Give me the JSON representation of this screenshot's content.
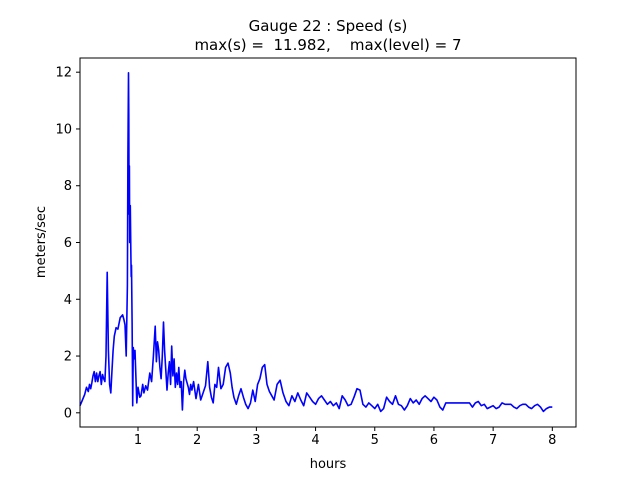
{
  "chart_data": {
    "type": "line",
    "title": "Gauge 22 : Speed (s)",
    "subtitle": "max(s) =  11.982,    max(level) = 7",
    "xlabel": "hours",
    "ylabel": "meters/sec",
    "xlim": [
      0.02,
      8.4
    ],
    "ylim": [
      -0.5,
      12.5
    ],
    "xticks": [
      1,
      2,
      3,
      4,
      5,
      6,
      7,
      8
    ],
    "yticks": [
      0,
      2,
      4,
      6,
      8,
      10,
      12
    ],
    "grid": false,
    "line_color": "#0000ff",
    "series": [
      {
        "x": [
          0.02,
          0.05,
          0.1,
          0.13,
          0.16,
          0.18,
          0.2,
          0.22,
          0.24,
          0.26,
          0.28,
          0.3,
          0.32,
          0.34,
          0.36,
          0.38,
          0.4,
          0.42,
          0.44,
          0.46,
          0.48,
          0.5,
          0.52,
          0.54,
          0.56,
          0.58,
          0.6,
          0.63,
          0.66,
          0.7,
          0.74,
          0.76,
          0.78,
          0.8,
          0.82,
          0.83,
          0.84,
          0.845,
          0.85,
          0.855,
          0.86,
          0.87,
          0.88,
          0.885,
          0.89,
          0.9,
          0.91,
          0.92,
          0.93,
          0.95,
          0.98,
          1.0,
          1.03,
          1.05,
          1.08,
          1.1,
          1.13,
          1.16,
          1.2,
          1.23,
          1.26,
          1.29,
          1.31,
          1.33,
          1.35,
          1.37,
          1.39,
          1.41,
          1.43,
          1.45,
          1.47,
          1.49,
          1.51,
          1.53,
          1.55,
          1.57,
          1.59,
          1.61,
          1.63,
          1.65,
          1.67,
          1.69,
          1.71,
          1.73,
          1.75,
          1.77,
          1.79,
          1.81,
          1.83,
          1.85,
          1.87,
          1.89,
          1.91,
          1.94,
          1.98,
          2.02,
          2.06,
          2.1,
          2.14,
          2.18,
          2.21,
          2.24,
          2.27,
          2.3,
          2.33,
          2.36,
          2.4,
          2.44,
          2.48,
          2.52,
          2.56,
          2.59,
          2.62,
          2.66,
          2.7,
          2.74,
          2.78,
          2.82,
          2.86,
          2.9,
          2.94,
          2.98,
          3.02,
          3.06,
          3.1,
          3.14,
          3.18,
          3.22,
          3.26,
          3.3,
          3.35,
          3.4,
          3.45,
          3.5,
          3.55,
          3.6,
          3.65,
          3.7,
          3.75,
          3.8,
          3.85,
          3.9,
          3.95,
          4.0,
          4.05,
          4.1,
          4.15,
          4.2,
          4.25,
          4.3,
          4.35,
          4.4,
          4.45,
          4.5,
          4.55,
          4.6,
          4.65,
          4.7,
          4.75,
          4.8,
          4.85,
          4.9,
          4.95,
          5.0,
          5.05,
          5.1,
          5.15,
          5.2,
          5.25,
          5.3,
          5.35,
          5.4,
          5.45,
          5.5,
          5.55,
          5.6,
          5.65,
          5.7,
          5.75,
          5.8,
          5.85,
          5.9,
          5.95,
          6.0,
          6.05,
          6.1,
          6.15,
          6.2,
          6.25,
          6.3,
          6.35,
          6.4,
          6.45,
          6.5,
          6.55,
          6.6,
          6.65,
          6.7,
          6.75,
          6.8,
          6.85,
          6.9,
          6.95,
          7.0,
          7.05,
          7.1,
          7.15,
          7.2,
          7.25,
          7.3,
          7.35,
          7.4,
          7.45,
          7.5,
          7.55,
          7.6,
          7.65,
          7.7,
          7.75,
          7.8,
          7.85,
          7.9,
          7.95,
          8.0
        ],
        "y": [
          0.25,
          0.4,
          0.65,
          0.9,
          0.75,
          1.0,
          0.85,
          1.05,
          1.3,
          1.45,
          1.1,
          1.4,
          1.1,
          1.3,
          1.45,
          1.0,
          1.35,
          1.2,
          1.1,
          2.0,
          4.95,
          2.2,
          1.0,
          0.7,
          1.5,
          2.2,
          2.7,
          3.0,
          2.95,
          3.35,
          3.45,
          3.3,
          3.1,
          2.0,
          4.5,
          9.0,
          11.98,
          10.5,
          7.0,
          8.7,
          6.0,
          7.3,
          5.5,
          4.8,
          5.2,
          3.2,
          0.25,
          2.3,
          1.9,
          2.2,
          0.35,
          0.9,
          0.55,
          0.6,
          1.0,
          0.7,
          0.95,
          0.8,
          1.4,
          1.1,
          2.0,
          3.05,
          1.8,
          2.5,
          2.2,
          1.6,
          1.2,
          2.0,
          3.2,
          2.2,
          1.5,
          0.8,
          1.4,
          1.8,
          1.0,
          2.35,
          1.3,
          1.9,
          0.9,
          1.4,
          1.0,
          1.6,
          0.9,
          1.1,
          0.1,
          1.1,
          1.5,
          1.2,
          1.05,
          0.9,
          0.65,
          1.0,
          0.8,
          1.1,
          0.5,
          1.0,
          0.45,
          0.7,
          0.95,
          1.8,
          0.9,
          0.55,
          0.35,
          1.0,
          0.9,
          1.6,
          0.85,
          1.0,
          1.6,
          1.75,
          1.4,
          0.9,
          0.55,
          0.3,
          0.6,
          0.85,
          0.55,
          0.3,
          0.15,
          0.35,
          0.8,
          0.4,
          1.0,
          1.2,
          1.6,
          1.7,
          1.0,
          0.75,
          0.6,
          0.45,
          1.0,
          1.15,
          0.7,
          0.4,
          0.25,
          0.6,
          0.4,
          0.7,
          0.45,
          0.25,
          0.7,
          0.55,
          0.4,
          0.3,
          0.5,
          0.6,
          0.45,
          0.3,
          0.4,
          0.25,
          0.35,
          0.15,
          0.6,
          0.45,
          0.25,
          0.3,
          0.55,
          0.85,
          0.8,
          0.3,
          0.2,
          0.35,
          0.25,
          0.15,
          0.3,
          0.05,
          0.15,
          0.55,
          0.4,
          0.3,
          0.6,
          0.3,
          0.25,
          0.1,
          0.25,
          0.5,
          0.35,
          0.45,
          0.3,
          0.5,
          0.6,
          0.5,
          0.4,
          0.55,
          0.45,
          0.2,
          0.1,
          0.35,
          0.35,
          0.35,
          0.35,
          0.35,
          0.35,
          0.35,
          0.35,
          0.35,
          0.2,
          0.35,
          0.4,
          0.25,
          0.3,
          0.15,
          0.2,
          0.25,
          0.15,
          0.2,
          0.35,
          0.3,
          0.3,
          0.3,
          0.2,
          0.15,
          0.25,
          0.3,
          0.3,
          0.2,
          0.15,
          0.25,
          0.3,
          0.2,
          0.05,
          0.15,
          0.2,
          0.2
        ]
      }
    ]
  }
}
